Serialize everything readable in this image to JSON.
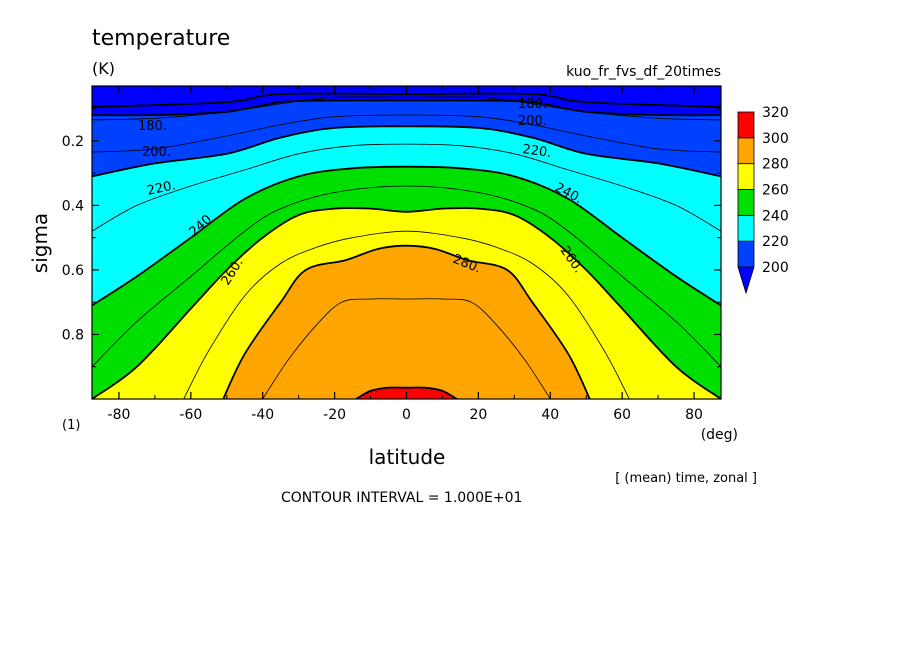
{
  "chart_data": {
    "type": "heatmap",
    "title": "temperature",
    "units": "(K)",
    "subtitle": "kuo_fr_fvs_df_20times",
    "xlabel": "latitude",
    "x_units": "(deg)",
    "ylabel": "sigma",
    "y_units": "(1)",
    "xlim": [
      -87.5,
      87.5
    ],
    "ylim": [
      1.0,
      0.03
    ],
    "y_inverted": true,
    "x_ticks": [
      -80,
      -60,
      -40,
      -20,
      0,
      20,
      40,
      60,
      80
    ],
    "x_tick_labels": [
      "-80",
      "-60",
      "-40",
      "-20",
      "0",
      "20",
      "40",
      "60",
      "80"
    ],
    "y_ticks": [
      0.2,
      0.4,
      0.6,
      0.8
    ],
    "y_tick_labels": [
      "0.2",
      "0.4",
      "0.6",
      "0.8"
    ],
    "colorbar": {
      "levels": [
        200,
        220,
        240,
        260,
        280,
        300,
        320
      ],
      "labels": [
        "200",
        "220",
        "240",
        "260",
        "280",
        "300",
        "320"
      ],
      "colors": [
        "#0040ff",
        "#00ffff",
        "#00e000",
        "#ffff00",
        "#ffa500",
        "#ff0000"
      ],
      "below_color": "#0000ff"
    },
    "contour_labels": [
      "180.",
      "200.",
      "220.",
      "240",
      "260.",
      "280.",
      "180.",
      "200.",
      "220.",
      "240.",
      "260."
    ],
    "contour_levels": [
      180,
      190,
      200,
      210,
      220,
      230,
      240,
      250,
      260,
      270,
      280,
      290,
      300
    ],
    "fill_bands": [
      {
        "level": 200,
        "color": "#0040ff",
        "lat": [
          -87.5,
          -70,
          -50,
          -35,
          -20,
          0,
          20,
          35,
          50,
          70,
          87.5
        ],
        "sigma": [
          0.12,
          0.12,
          0.11,
          0.08,
          0.075,
          0.075,
          0.075,
          0.08,
          0.11,
          0.12,
          0.12
        ]
      },
      {
        "level": 220,
        "color": "#00ffff",
        "lat": [
          -87.5,
          -70,
          -50,
          -35,
          -20,
          0,
          20,
          35,
          50,
          70,
          87.5
        ],
        "sigma": [
          0.31,
          0.27,
          0.24,
          0.19,
          0.16,
          0.155,
          0.16,
          0.19,
          0.24,
          0.27,
          0.31
        ]
      },
      {
        "level": 240,
        "color": "#00e000",
        "lat": [
          -87.5,
          -75,
          -60,
          -45,
          -30,
          -15,
          0,
          15,
          30,
          45,
          60,
          75,
          87.5
        ],
        "sigma": [
          0.71,
          0.62,
          0.5,
          0.38,
          0.31,
          0.285,
          0.28,
          0.285,
          0.31,
          0.38,
          0.5,
          0.62,
          0.71
        ]
      },
      {
        "level": 260,
        "color": "#ffff00",
        "lat": [
          -87.5,
          -75,
          -60,
          -50,
          -40,
          -30,
          -20,
          -10,
          0,
          10,
          20,
          30,
          40,
          50,
          60,
          75,
          87.5
        ],
        "sigma": [
          1.0,
          0.9,
          0.72,
          0.6,
          0.5,
          0.43,
          0.41,
          0.41,
          0.42,
          0.41,
          0.41,
          0.43,
          0.5,
          0.6,
          0.72,
          0.9,
          1.0
        ]
      },
      {
        "level": 280,
        "color": "#ffa500",
        "lat": [
          -51,
          -45,
          -35,
          -28,
          -17,
          -8,
          0,
          8,
          17,
          28,
          35,
          45,
          51
        ],
        "sigma": [
          1.0,
          0.86,
          0.7,
          0.6,
          0.57,
          0.535,
          0.525,
          0.535,
          0.57,
          0.6,
          0.7,
          0.86,
          1.0
        ]
      },
      {
        "level": 300,
        "color": "#ff0000",
        "lat": [
          -14,
          -10,
          -5,
          0,
          5,
          10,
          14
        ],
        "sigma": [
          1.0,
          0.975,
          0.965,
          0.965,
          0.965,
          0.975,
          1.0
        ]
      }
    ],
    "thin_contours": [
      {
        "level": 190,
        "lat": [
          -87.5,
          -70,
          -50,
          -35,
          -20,
          0,
          20,
          35,
          50,
          70,
          87.5
        ],
        "sigma": [
          0.135,
          0.13,
          0.11,
          0.085,
          0.065,
          0.065,
          0.065,
          0.085,
          0.11,
          0.13,
          0.135
        ]
      },
      {
        "level": 210,
        "lat": [
          -87.5,
          -70,
          -50,
          -35,
          -20,
          0,
          20,
          35,
          50,
          70,
          87.5
        ],
        "sigma": [
          0.235,
          0.225,
          0.185,
          0.15,
          0.125,
          0.12,
          0.125,
          0.15,
          0.185,
          0.225,
          0.235
        ]
      },
      {
        "level": 230,
        "lat": [
          -87.5,
          -75,
          -60,
          -45,
          -30,
          -15,
          0,
          15,
          30,
          45,
          60,
          75,
          87.5
        ],
        "sigma": [
          0.48,
          0.4,
          0.34,
          0.29,
          0.24,
          0.215,
          0.21,
          0.215,
          0.24,
          0.29,
          0.34,
          0.4,
          0.48
        ]
      },
      {
        "level": 250,
        "lat": [
          -87.5,
          -75,
          -60,
          -45,
          -35,
          -20,
          0,
          20,
          35,
          45,
          60,
          75,
          87.5
        ],
        "sigma": [
          0.9,
          0.76,
          0.62,
          0.48,
          0.41,
          0.36,
          0.34,
          0.36,
          0.41,
          0.48,
          0.62,
          0.76,
          0.9
        ]
      },
      {
        "level": 270,
        "lat": [
          -62,
          -55,
          -45,
          -35,
          -25,
          -15,
          0,
          15,
          25,
          35,
          45,
          55,
          62
        ],
        "sigma": [
          1.0,
          0.85,
          0.68,
          0.58,
          0.53,
          0.5,
          0.48,
          0.5,
          0.53,
          0.58,
          0.68,
          0.85,
          1.0
        ]
      },
      {
        "level": 290,
        "lat": [
          -40,
          -33,
          -25,
          -18,
          -10,
          0,
          10,
          18,
          25,
          33,
          40
        ],
        "sigma": [
          1.0,
          0.88,
          0.77,
          0.7,
          0.69,
          0.69,
          0.69,
          0.7,
          0.77,
          0.88,
          1.0
        ]
      }
    ]
  },
  "footer": {
    "ops": "[ (mean) time, zonal ]",
    "contour_interval": "CONTOUR INTERVAL = 1.000E+01"
  }
}
